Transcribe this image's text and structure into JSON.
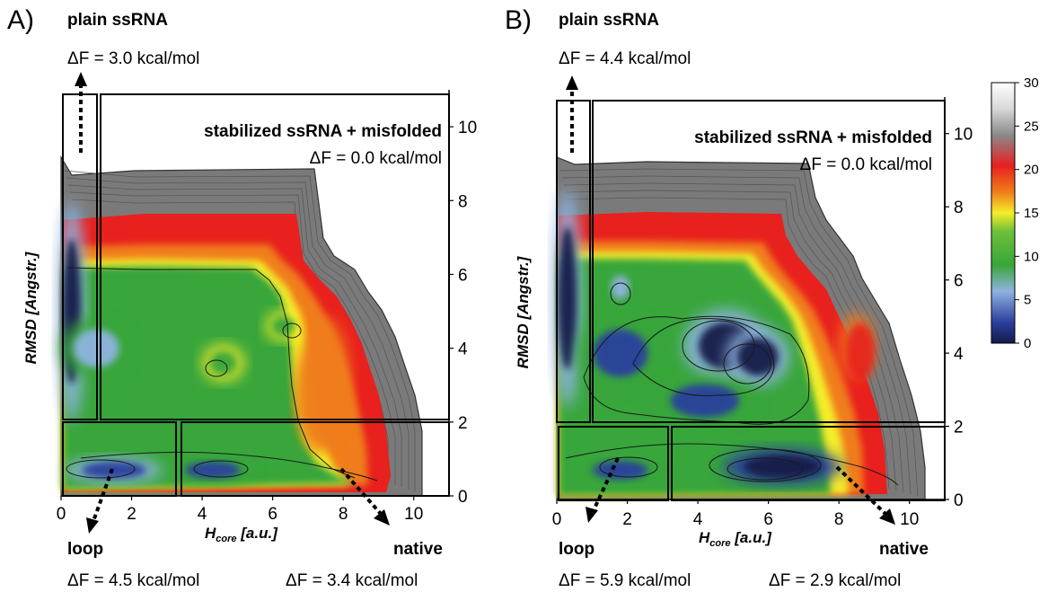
{
  "chart_data": [
    {
      "type": "heatmap",
      "panel_label": "A)",
      "xlabel_main": "H",
      "xlabel_sub": "core",
      "xlabel_unit": "[a.u.]",
      "ylabel": "RMSD [Angstr.]",
      "xlim": [
        0,
        11
      ],
      "ylim": [
        0,
        11
      ],
      "x_ticks": [
        "0",
        "2",
        "4",
        "6",
        "8",
        "10"
      ],
      "y_ticks": [
        "0",
        "2",
        "4",
        "6",
        "8",
        "10"
      ],
      "basins": [
        {
          "name": "plain ssRNA",
          "dF": "ΔF = 3.0 kcal/mol"
        },
        {
          "name": "stabilized ssRNA + misfolded",
          "dF": "ΔF = 0.0 kcal/mol"
        },
        {
          "name": "loop",
          "dF": "ΔF = 4.5 kcal/mol"
        },
        {
          "name": "native",
          "dF": "ΔF = 3.4 kcal/mol"
        }
      ],
      "blobs": [
        {
          "x": 0.3,
          "y": 5.0,
          "rx": 0.4,
          "ry": 3.0,
          "level": 2
        },
        {
          "x": 1.0,
          "y": 4.0,
          "rx": 1.0,
          "ry": 0.8,
          "level": 6
        },
        {
          "x": 1.5,
          "y": 0.7,
          "rx": 1.4,
          "ry": 0.35,
          "level": 3
        },
        {
          "x": 4.3,
          "y": 0.7,
          "rx": 1.2,
          "ry": 0.35,
          "level": 4
        },
        {
          "x": 4.6,
          "y": 3.6,
          "rx": 0.6,
          "ry": 0.5,
          "level": 10
        },
        {
          "x": 6.3,
          "y": 4.6,
          "rx": 0.5,
          "ry": 0.4,
          "level": 10
        }
      ],
      "ridges": [
        {
          "x": 7.5,
          "y": 3.0,
          "rx": 0.7,
          "ry": 1.8,
          "level": 18
        }
      ]
    },
    {
      "type": "heatmap",
      "panel_label": "B)",
      "xlabel_main": "H",
      "xlabel_sub": "core",
      "xlabel_unit": "[a.u.]",
      "ylabel": "RMSD [Angstr.]",
      "xlim": [
        0,
        11
      ],
      "ylim": [
        0,
        11
      ],
      "x_ticks": [
        "0",
        "2",
        "4",
        "6",
        "8",
        "10"
      ],
      "y_ticks": [
        "0",
        "2",
        "4",
        "6",
        "8",
        "10"
      ],
      "basins": [
        {
          "name": "plain ssRNA",
          "dF": "ΔF = 4.4 kcal/mol"
        },
        {
          "name": "stabilized ssRNA + misfolded",
          "dF": "ΔF = 0.0 kcal/mol"
        },
        {
          "name": "loop",
          "dF": "ΔF = 5.9 kcal/mol"
        },
        {
          "name": "native",
          "dF": "ΔF = 2.9 kcal/mol"
        }
      ],
      "blobs": [
        {
          "x": 0.3,
          "y": 5.5,
          "rx": 0.4,
          "ry": 3.0,
          "level": 2
        },
        {
          "x": 1.8,
          "y": 4.0,
          "rx": 1.2,
          "ry": 1.0,
          "level": 4
        },
        {
          "x": 4.8,
          "y": 4.2,
          "rx": 1.2,
          "ry": 1.0,
          "level": 1
        },
        {
          "x": 5.7,
          "y": 3.9,
          "rx": 0.9,
          "ry": 0.8,
          "level": 1
        },
        {
          "x": 4.2,
          "y": 2.7,
          "rx": 1.5,
          "ry": 0.7,
          "level": 5
        },
        {
          "x": 6.4,
          "y": 0.9,
          "rx": 1.7,
          "ry": 0.5,
          "level": 0
        },
        {
          "x": 1.8,
          "y": 0.8,
          "rx": 1.2,
          "ry": 0.4,
          "level": 4
        },
        {
          "x": 1.8,
          "y": 5.8,
          "rx": 0.4,
          "ry": 0.5,
          "level": 7
        }
      ],
      "ridges": [
        {
          "x": 8.5,
          "y": 4.2,
          "rx": 0.5,
          "ry": 0.9,
          "level": 19
        }
      ]
    }
  ],
  "colorbar": {
    "ticks": [
      "0",
      "5",
      "10",
      "15",
      "20",
      "25",
      "30"
    ],
    "min": 0,
    "max": 30,
    "colors": [
      "#141a4a",
      "#2b3f9e",
      "#8fb3e0",
      "#38a63a",
      "#6fbf3a",
      "#f5ee2a",
      "#f07d1a",
      "#e8201e",
      "#d8d8d8",
      "#ffffff"
    ]
  }
}
